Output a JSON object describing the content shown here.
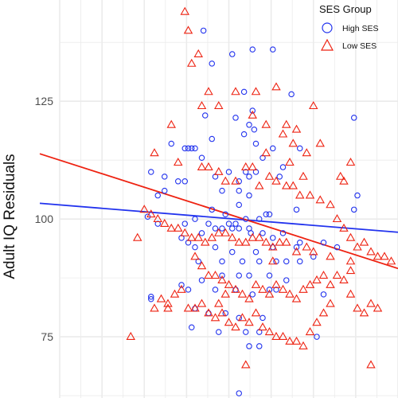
{
  "chart_data": {
    "type": "scatter",
    "ylabel": "Adult IQ Residuals",
    "xlabel": "",
    "ylim": [
      62,
      146.5
    ],
    "xlim": [
      0,
      100
    ],
    "yticks": [
      75,
      100,
      125
    ],
    "grid": true,
    "legend": {
      "title": "SES Group",
      "placement": "top-right"
    },
    "series": [
      {
        "name": "High SES",
        "marker": "circle",
        "color": "#2233ee",
        "points": [
          [
            42.5,
            140
          ],
          [
            45,
            133
          ],
          [
            51,
            135
          ],
          [
            57,
            136
          ],
          [
            63,
            136
          ],
          [
            54.5,
            127
          ],
          [
            68.5,
            126.5
          ],
          [
            57,
            123
          ],
          [
            43,
            122
          ],
          [
            45,
            117
          ],
          [
            52,
            121.5
          ],
          [
            56,
            120
          ],
          [
            57.5,
            119
          ],
          [
            54.5,
            118
          ],
          [
            58,
            116
          ],
          [
            37,
            115
          ],
          [
            39,
            115
          ],
          [
            38,
            115
          ],
          [
            40,
            115
          ],
          [
            42,
            113
          ],
          [
            60,
            113
          ],
          [
            63,
            115
          ],
          [
            71,
            115
          ],
          [
            66,
            111
          ],
          [
            50,
            110
          ],
          [
            55,
            110
          ],
          [
            58,
            110
          ],
          [
            56,
            109
          ],
          [
            65,
            109
          ],
          [
            37,
            108
          ],
          [
            46,
            109
          ],
          [
            35,
            108
          ],
          [
            53,
            108
          ],
          [
            53,
            106
          ],
          [
            48,
            106
          ],
          [
            56,
            105
          ],
          [
            53,
            103
          ],
          [
            70,
            102
          ],
          [
            45,
            102
          ],
          [
            62,
            101
          ],
          [
            49,
            101
          ],
          [
            55,
            100
          ],
          [
            59,
            100
          ],
          [
            61,
            101
          ],
          [
            40,
            100
          ],
          [
            37,
            99
          ],
          [
            44,
            99
          ],
          [
            46,
            98
          ],
          [
            48,
            98
          ],
          [
            50,
            99
          ],
          [
            52,
            99
          ],
          [
            51,
            98
          ],
          [
            53,
            98
          ],
          [
            56,
            98
          ],
          [
            56.5,
            97
          ],
          [
            60,
            97
          ],
          [
            63,
            96
          ],
          [
            42,
            97
          ],
          [
            36,
            96
          ],
          [
            29,
            99
          ],
          [
            26,
            100.5
          ],
          [
            38,
            95
          ],
          [
            40,
            94
          ],
          [
            46,
            94
          ],
          [
            51,
            93
          ],
          [
            58,
            93
          ],
          [
            63,
            94
          ],
          [
            70,
            94
          ],
          [
            41,
            91
          ],
          [
            48,
            91
          ],
          [
            54,
            91
          ],
          [
            59,
            91
          ],
          [
            64,
            91
          ],
          [
            53,
            88
          ],
          [
            56,
            88
          ],
          [
            48,
            88
          ],
          [
            62,
            88
          ],
          [
            67,
            87
          ],
          [
            42,
            87
          ],
          [
            36,
            86
          ],
          [
            38,
            85
          ],
          [
            46,
            85
          ],
          [
            52,
            85
          ],
          [
            57,
            84
          ],
          [
            62,
            85
          ],
          [
            64,
            85
          ],
          [
            40,
            81
          ],
          [
            44,
            80
          ],
          [
            49,
            80
          ],
          [
            53,
            79
          ],
          [
            60,
            79
          ],
          [
            39,
            77
          ],
          [
            47,
            76
          ],
          [
            55,
            76
          ],
          [
            59,
            76
          ],
          [
            56,
            73
          ],
          [
            59,
            73
          ],
          [
            66,
            97
          ],
          [
            67,
            91
          ],
          [
            71,
            91
          ],
          [
            75,
            92
          ],
          [
            71,
            95
          ],
          [
            78,
            95
          ],
          [
            82,
            94
          ],
          [
            78,
            84
          ],
          [
            76,
            75
          ],
          [
            87,
            102
          ],
          [
            88,
            105
          ],
          [
            87,
            121.5
          ],
          [
            31,
            109
          ],
          [
            27,
            110
          ],
          [
            29,
            105
          ],
          [
            27,
            83
          ],
          [
            27,
            83.5
          ],
          [
            31,
            106
          ],
          [
            33,
            116
          ],
          [
            53,
            63
          ]
        ]
      },
      {
        "name": "Low SES",
        "marker": "triangle",
        "color": "#ee2211",
        "points": [
          [
            37,
            144
          ],
          [
            38,
            140
          ],
          [
            39,
            133
          ],
          [
            41,
            135
          ],
          [
            42,
            124
          ],
          [
            44,
            127
          ],
          [
            47,
            124
          ],
          [
            52,
            127
          ],
          [
            57,
            122
          ],
          [
            58,
            127
          ],
          [
            61,
            120
          ],
          [
            64,
            128
          ],
          [
            66,
            118
          ],
          [
            67,
            120
          ],
          [
            70,
            119
          ],
          [
            75,
            124
          ],
          [
            73,
            114
          ],
          [
            77,
            116
          ],
          [
            69,
            116
          ],
          [
            61,
            114
          ],
          [
            33,
            120
          ],
          [
            35,
            112
          ],
          [
            28,
            114
          ],
          [
            42,
            111
          ],
          [
            44,
            111
          ],
          [
            47,
            110
          ],
          [
            49,
            108
          ],
          [
            52,
            108
          ],
          [
            55,
            111
          ],
          [
            57,
            111
          ],
          [
            59,
            107
          ],
          [
            62,
            109
          ],
          [
            64,
            108
          ],
          [
            67,
            107
          ],
          [
            69,
            107
          ],
          [
            71,
            105
          ],
          [
            74,
            105
          ],
          [
            77,
            104
          ],
          [
            80,
            103
          ],
          [
            82,
            100
          ],
          [
            84,
            98
          ],
          [
            86,
            96
          ],
          [
            88,
            94
          ],
          [
            90,
            95
          ],
          [
            92,
            93
          ],
          [
            94,
            92
          ],
          [
            96,
            92
          ],
          [
            98,
            91
          ],
          [
            86,
            91
          ],
          [
            80,
            92
          ],
          [
            75,
            93
          ],
          [
            73,
            94
          ],
          [
            70,
            93
          ],
          [
            67,
            95
          ],
          [
            65,
            95
          ],
          [
            63,
            94
          ],
          [
            61,
            95
          ],
          [
            59,
            96
          ],
          [
            57,
            96
          ],
          [
            55,
            95
          ],
          [
            53,
            95
          ],
          [
            51,
            96
          ],
          [
            49,
            97
          ],
          [
            47,
            97
          ],
          [
            45,
            96
          ],
          [
            43,
            95
          ],
          [
            41,
            96
          ],
          [
            39,
            96
          ],
          [
            37,
            97
          ],
          [
            35,
            98
          ],
          [
            33,
            98
          ],
          [
            31,
            99
          ],
          [
            29,
            100
          ],
          [
            27,
            101
          ],
          [
            25,
            102
          ],
          [
            23,
            96
          ],
          [
            40,
            92
          ],
          [
            42,
            90
          ],
          [
            44,
            88
          ],
          [
            46,
            88
          ],
          [
            48,
            87
          ],
          [
            50,
            86
          ],
          [
            52,
            85
          ],
          [
            54,
            84
          ],
          [
            56,
            83
          ],
          [
            58,
            86
          ],
          [
            60,
            85
          ],
          [
            62,
            84
          ],
          [
            64,
            86
          ],
          [
            66,
            85
          ],
          [
            68,
            84
          ],
          [
            70,
            83
          ],
          [
            72,
            85
          ],
          [
            74,
            86
          ],
          [
            76,
            87
          ],
          [
            78,
            88
          ],
          [
            80,
            86
          ],
          [
            82,
            88
          ],
          [
            84,
            87
          ],
          [
            86,
            89
          ],
          [
            88,
            81
          ],
          [
            90,
            80
          ],
          [
            92,
            82
          ],
          [
            94,
            81
          ],
          [
            28,
            81
          ],
          [
            30,
            83
          ],
          [
            32,
            82
          ],
          [
            34,
            84
          ],
          [
            36,
            85
          ],
          [
            38,
            81
          ],
          [
            40,
            81
          ],
          [
            42,
            82
          ],
          [
            44,
            80
          ],
          [
            46,
            79
          ],
          [
            48,
            80
          ],
          [
            50,
            78
          ],
          [
            52,
            77
          ],
          [
            54,
            79
          ],
          [
            56,
            78
          ],
          [
            58,
            80
          ],
          [
            60,
            77
          ],
          [
            62,
            76
          ],
          [
            64,
            75
          ],
          [
            66,
            75
          ],
          [
            68,
            74
          ],
          [
            70,
            74
          ],
          [
            72,
            73
          ],
          [
            74,
            76
          ],
          [
            76,
            78
          ],
          [
            78,
            80
          ],
          [
            80,
            82
          ],
          [
            55,
            69
          ],
          [
            92,
            69
          ],
          [
            21,
            75
          ],
          [
            32,
            81
          ],
          [
            47,
            82
          ],
          [
            49,
            84
          ],
          [
            63,
            91
          ],
          [
            83,
            109
          ],
          [
            86,
            112
          ],
          [
            84,
            108
          ],
          [
            72,
            109
          ],
          [
            68,
            112
          ],
          [
            86,
            84
          ]
        ]
      }
    ],
    "fit_lines": [
      {
        "name": "High SES",
        "color": "#2233ee",
        "x": [
          0,
          100
        ],
        "y": [
          103,
          97.2
        ]
      },
      {
        "name": "Low SES",
        "color": "#ee2211",
        "x": [
          0,
          100
        ],
        "y": [
          112.5,
          89.5
        ]
      }
    ]
  }
}
